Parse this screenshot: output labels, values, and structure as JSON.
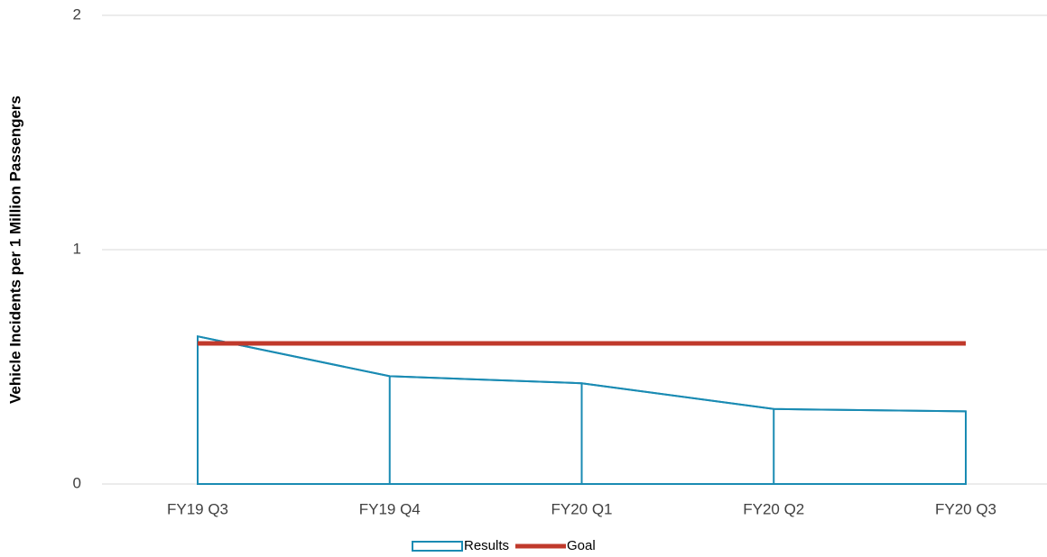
{
  "chart_data": {
    "type": "area",
    "y_axis_label": "Vehicle Incidents per 1 Million Passengers",
    "categories": [
      "FY19 Q3",
      "FY19 Q4",
      "FY20 Q1",
      "FY20 Q2",
      "FY20 Q3"
    ],
    "series": [
      {
        "name": "Results",
        "type": "area",
        "color": "#1a8bb3",
        "values": [
          0.63,
          0.46,
          0.43,
          0.32,
          0.31
        ]
      },
      {
        "name": "Goal",
        "type": "line",
        "color": "#c0392b",
        "values": [
          0.6,
          0.6,
          0.6,
          0.6,
          0.6
        ]
      }
    ],
    "ylim": [
      0,
      2
    ],
    "yticks": [
      0,
      1,
      2
    ],
    "grid": true,
    "legend": "bottom"
  }
}
